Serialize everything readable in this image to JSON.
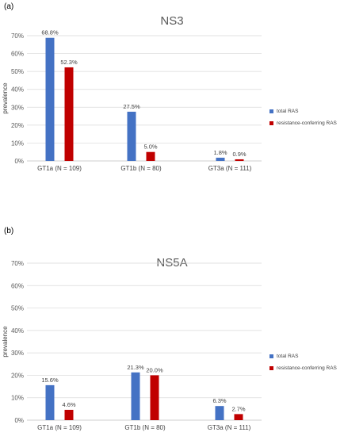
{
  "panels": [
    {
      "letter": "(a)"
    },
    {
      "letter": "(b)"
    }
  ],
  "chart_data": [
    {
      "type": "bar",
      "title": "NS3",
      "xlabel": "",
      "ylabel": "prevalence",
      "ylim": [
        0,
        70
      ],
      "y_ticks": [
        "0%",
        "10%",
        "20%",
        "30%",
        "40%",
        "50%",
        "60%",
        "70%"
      ],
      "categories": [
        "GT1a (N = 109)",
        "GT1b (N = 80)",
        "GT3a (N = 111)"
      ],
      "series": [
        {
          "name": "total RAS",
          "color": "#4472c4",
          "values": [
            68.8,
            27.5,
            1.8
          ],
          "labels": [
            "68.8%",
            "27.5%",
            "1.8%"
          ]
        },
        {
          "name": "resistance-conferring RAS",
          "color": "#c00000",
          "values": [
            52.3,
            5.0,
            0.9
          ],
          "labels": [
            "52.3%",
            "5.0%",
            "0.9%"
          ]
        }
      ],
      "legend_position": "right",
      "grid": true
    },
    {
      "type": "bar",
      "title": "NS5A",
      "xlabel": "",
      "ylabel": "prevalence",
      "ylim": [
        0,
        70
      ],
      "y_ticks": [
        "0%",
        "10%",
        "20%",
        "30%",
        "40%",
        "50%",
        "60%",
        "70%"
      ],
      "categories": [
        "GT1a  (N = 109)",
        "GT1b (N = 80)",
        "GT3a (N = 111)"
      ],
      "series": [
        {
          "name": "total RAS",
          "color": "#4472c4",
          "values": [
            15.6,
            21.3,
            6.3
          ],
          "labels": [
            "15.6%",
            "21.3%",
            "6.3%"
          ]
        },
        {
          "name": "resistance-conferring RAS",
          "color": "#c00000",
          "values": [
            4.6,
            20.0,
            2.7
          ],
          "labels": [
            "4.6%",
            "20.0%",
            "2.7%"
          ]
        }
      ],
      "legend_position": "right",
      "grid": true
    }
  ]
}
